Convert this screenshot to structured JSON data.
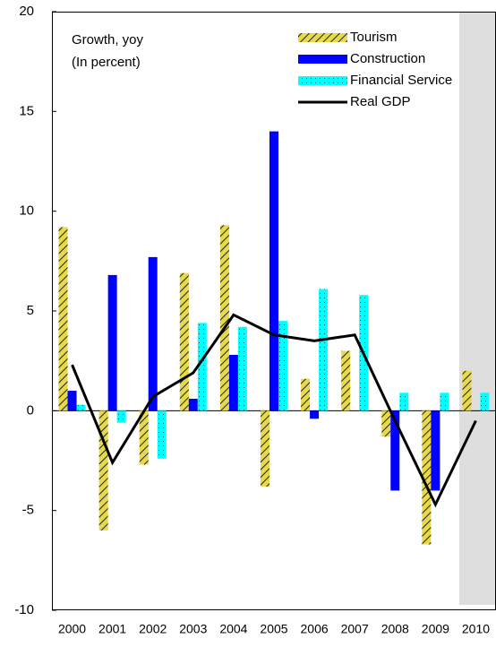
{
  "chart_data": {
    "type": "bar",
    "annotation": [
      "Growth, yoy",
      "(In percent)"
    ],
    "categories": [
      "2000",
      "2001",
      "2002",
      "2003",
      "2004",
      "2005",
      "2006",
      "2007",
      "2008",
      "2009",
      "2010"
    ],
    "series": [
      {
        "name": "Tourism",
        "type": "bar",
        "color": "#e6d94a",
        "pattern": "hatch",
        "values": [
          9.2,
          -6.0,
          -2.7,
          6.9,
          9.3,
          -3.8,
          1.6,
          3.0,
          -1.3,
          -6.7,
          2.0
        ]
      },
      {
        "name": "Construction",
        "type": "bar",
        "color": "#0000ff",
        "values": [
          1.0,
          6.8,
          7.7,
          0.6,
          2.8,
          14.0,
          -0.4,
          null,
          -4.0,
          -4.0,
          null
        ]
      },
      {
        "name": "Financial Service",
        "type": "bar",
        "color": "#00ffff",
        "pattern": "dots",
        "values": [
          0.3,
          -0.6,
          -2.4,
          4.4,
          4.2,
          4.5,
          6.1,
          5.8,
          0.9,
          0.9,
          0.9
        ]
      },
      {
        "name": "Real GDP",
        "type": "line",
        "color": "#000000",
        "values": [
          2.3,
          -2.6,
          0.7,
          1.9,
          4.8,
          3.8,
          3.5,
          3.8,
          -0.5,
          -4.7,
          -0.5
        ]
      }
    ],
    "ylim": [
      -10,
      20
    ],
    "yticks": [
      -10,
      -5,
      0,
      5,
      10,
      15,
      20
    ]
  }
}
